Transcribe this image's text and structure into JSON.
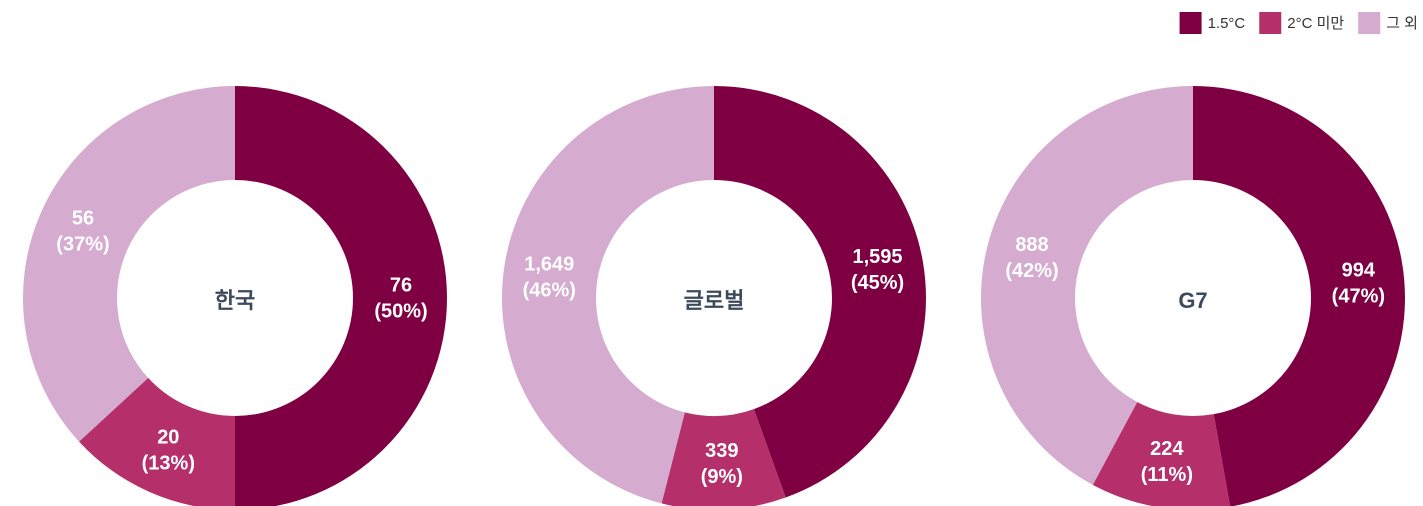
{
  "chart_data": [
    {
      "type": "pie",
      "title": "한국",
      "categories": [
        "1.5°C",
        "2°C 미만",
        "그 외"
      ],
      "colors": [
        "#7f0042",
        "#b5306a",
        "#d5abd0"
      ],
      "values": [
        76,
        20,
        56
      ],
      "percent_labels": [
        "(50%)",
        "(13%)",
        "(37%)"
      ],
      "legend": "top-right"
    },
    {
      "type": "pie",
      "title": "글로벌",
      "categories": [
        "1.5°C",
        "2°C 미만",
        "그 외"
      ],
      "colors": [
        "#7f0042",
        "#b5306a",
        "#d5abd0"
      ],
      "values": [
        1595,
        339,
        1649
      ],
      "value_labels": [
        "1,595",
        "339",
        "1,649"
      ],
      "percent_labels": [
        "(45%)",
        "(9%)",
        "(46%)"
      ]
    },
    {
      "type": "pie",
      "title": "G7",
      "categories": [
        "1.5°C",
        "2°C 미만",
        "그 외"
      ],
      "colors": [
        "#7f0042",
        "#b5306a",
        "#d5abd0"
      ],
      "values": [
        994,
        224,
        888
      ],
      "percent_labels": [
        "(47%)",
        "(11%)",
        "(42%)"
      ]
    }
  ]
}
